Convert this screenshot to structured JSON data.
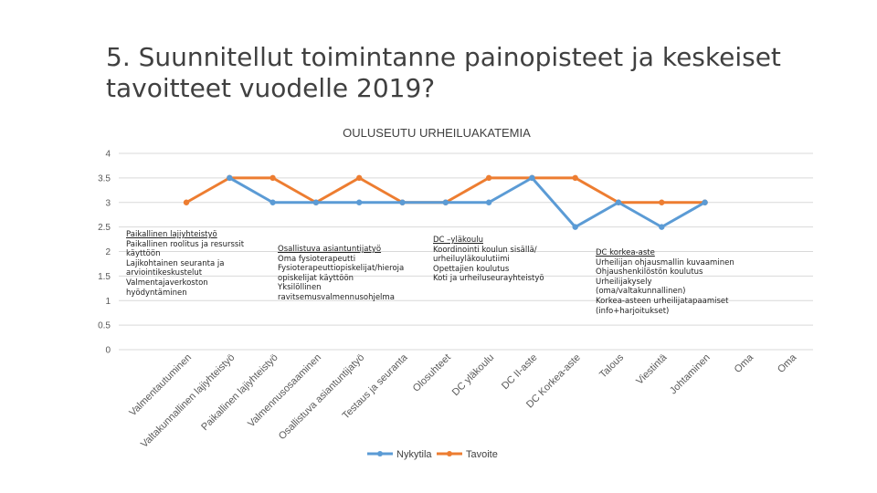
{
  "slide": {
    "title_lines": [
      "5. Suunnitellut toimintanne painopisteet ja keskeiset",
      "tavoitteet vuodelle 2019?"
    ]
  },
  "chart_data": {
    "type": "line",
    "title": "OULUSEUTU URHEILUAKATEMIA",
    "categories": [
      "Valmentautuminen",
      "Valtakunnallinen lajiyhteistyö",
      "Paikallinen lajiyhteistyö",
      "Valmennusosaaminen",
      "Osallistuva asiantuntijatyö",
      "Testaus ja seuranta",
      "Olosuhteet",
      "DC yläkoulu",
      "DC II-aste",
      "DC Korkea-aste",
      "Talous",
      "Viestintä",
      "Johtaminen",
      "Oma",
      "Oma"
    ],
    "series": [
      {
        "name": "Nykytila",
        "color": "#5B9BD5",
        "values": [
          null,
          3.5,
          3,
          3,
          3,
          3,
          3,
          3,
          3.5,
          2.5,
          3,
          2.5,
          3,
          null,
          null
        ]
      },
      {
        "name": "Tavoite",
        "color": "#ED7D31",
        "values": [
          3,
          3.5,
          3.5,
          3,
          3.5,
          3,
          3,
          3.5,
          3.5,
          3.5,
          3,
          3,
          3,
          null,
          null
        ]
      }
    ],
    "y_ticks": [
      "0",
      "0.5",
      "1",
      "1.5",
      "2",
      "2.5",
      "3",
      "3.5",
      "4"
    ],
    "ylim": [
      0,
      4
    ],
    "grid": true,
    "legend": "bottom"
  },
  "notes": [
    {
      "lines": [
        "Paikallinen lajiyhteistyö",
        "Paikallinen roolitus ja resurssit",
        "käyttöön",
        "Lajikohtainen seuranta ja",
        "arviointikeskustelut",
        "Valmentajaverkoston",
        "hyödyntäminen"
      ]
    },
    {
      "lines": [
        "Osallistuva asiantuntijatyö",
        "Oma fysioterapeutti",
        "Fysioterapeuttiopiskelijat/hieroja",
        "opiskelijat käyttöön",
        "Yksilöllinen",
        "ravitsemusvalmennusohjelma"
      ]
    },
    {
      "lines": [
        "DC –yläkoulu",
        "Koordinointi koulun sisällä/",
        "urheiluyläkoulutiimi",
        "Opettajien koulutus",
        "Koti ja urheiluseurayhteistyö"
      ]
    },
    {
      "lines": [
        "DC korkea-aste",
        "Urheilijan ohjausmallin kuvaaminen",
        "Ohjaushenkilöstön koulutus",
        "Urheilijakysely",
        "(oma/valtakunnallinen)",
        "Korkea-asteen urheilijatapaamiset",
        "(info+harjoitukset)"
      ]
    }
  ]
}
